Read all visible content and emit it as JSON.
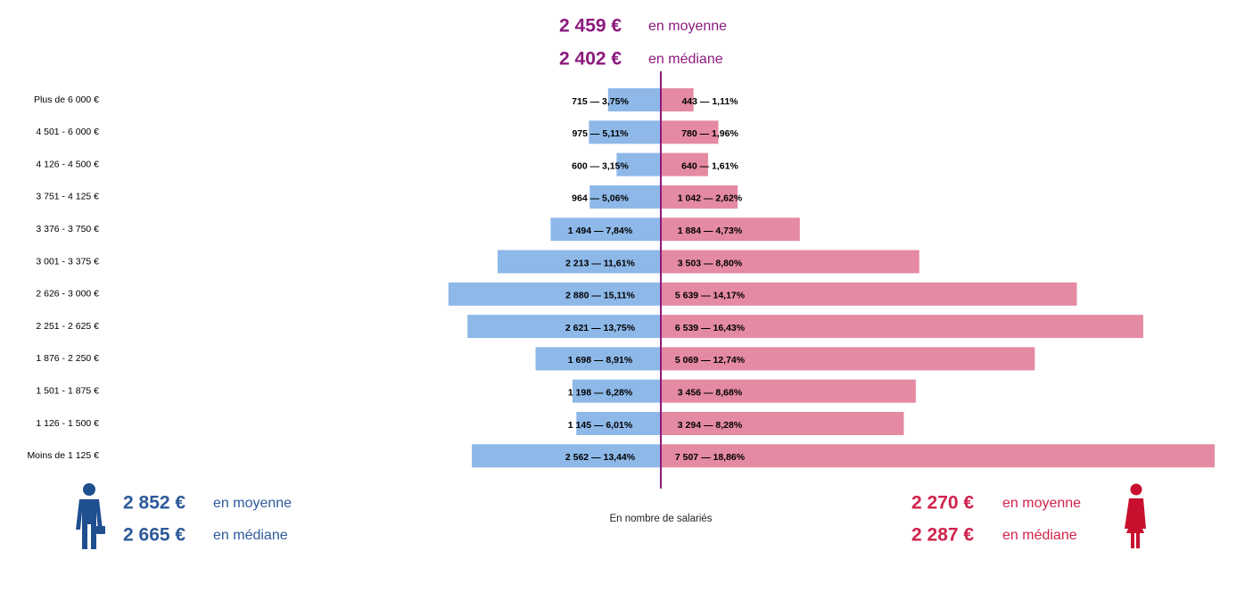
{
  "chart_data": {
    "type": "pyramid",
    "categories": [
      "Plus de 6 000 €",
      "4 501 - 6 000 €",
      "4 126 - 4 500 €",
      "3 751 - 4 125 €",
      "3 376 - 3 750 €",
      "3 001 - 3 375 €",
      "2 626 - 3 000 €",
      "2 251 - 2 625 €",
      "1 876 - 2 250 €",
      "1 501 - 1 875 €",
      "1 126 - 1 500 €",
      "Moins de 1 125 €"
    ],
    "series": [
      {
        "color": "#8db8e8",
        "text_color": "#2e5a9a",
        "values": [
          715,
          975,
          600,
          964,
          1494,
          2213,
          2880,
          2621,
          1698,
          1198,
          1145,
          2562
        ],
        "value_labels": [
          "715 — 3,75%",
          "975 — 5,11%",
          "600 — 3,15%",
          "964 — 5,06%",
          "1 494 — 7,84%",
          "2 213 — 11,61%",
          "2 880 — 15,11%",
          "2 621 — 13,75%",
          "1 698 — 8,91%",
          "1 198 — 6,28%",
          "1 145 — 6,01%",
          "2 562 — 13,44%"
        ],
        "mean": "2 852 €",
        "median": "2 665 €"
      },
      {
        "color": "#e48aa2",
        "text_color": "#d0234d",
        "values": [
          443,
          780,
          640,
          1042,
          1884,
          3503,
          5639,
          6539,
          5069,
          3456,
          3294,
          7507
        ],
        "value_labels": [
          "443 — 1,11%",
          "780 — 1,96%",
          "640 — 1,61%",
          "1 042 — 2,62%",
          "1 884 — 4,73%",
          "3 503 — 8,80%",
          "5 639 — 14,17%",
          "6 539 — 16,43%",
          "5 069 — 12,74%",
          "3 456 — 8,68%",
          "3 294 — 8,28%",
          "7 507 — 18,86%"
        ],
        "mean": "2 270 €",
        "median": "2 287 €"
      }
    ],
    "overall": {
      "color": "#8b1a7e",
      "mean": "2 459 €",
      "median": "2 402 €"
    },
    "mean_label": "en moyenne",
    "median_label": "en médiane",
    "axis_caption": "En nombre de salariés"
  }
}
